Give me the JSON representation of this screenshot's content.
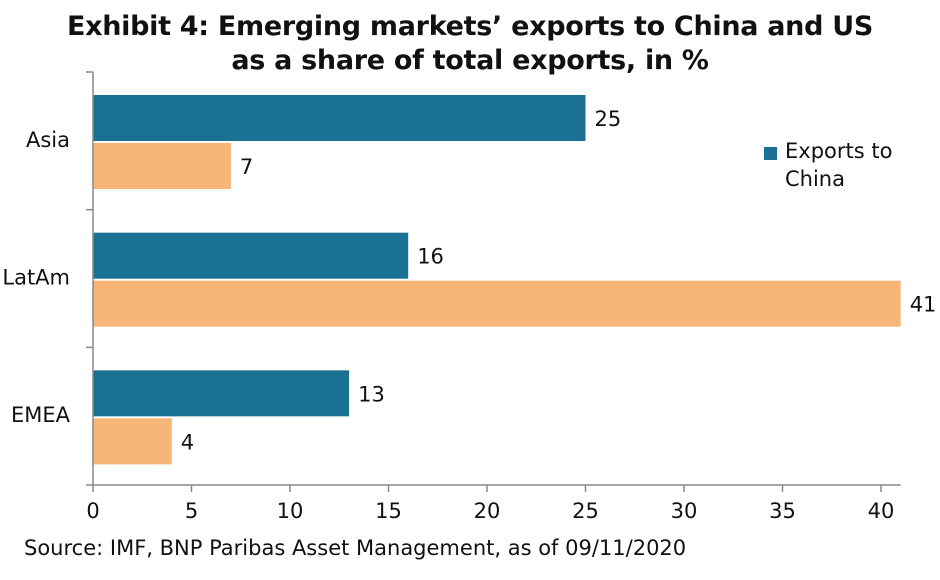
{
  "chart_data": {
    "type": "bar",
    "orientation": "horizontal",
    "title": "Exhibit 4: Emerging markets’ exports to China and US as a share of total exports, in %",
    "title_lines": [
      "Exhibit 4: Emerging markets’ exports to China and US",
      "as a share of total exports, in %"
    ],
    "categories": [
      "Asia",
      "LatAm",
      "EMEA"
    ],
    "series": [
      {
        "name": "Exports to China",
        "values": [
          25,
          16,
          13
        ],
        "color": "#1b7193"
      },
      {
        "values": [
          7,
          41,
          4
        ],
        "color": "#f7b678"
      }
    ],
    "value_labels": [
      [
        "25",
        "16",
        "13"
      ],
      [
        "7",
        "41",
        "4"
      ]
    ],
    "xlim": [
      0,
      41
    ],
    "xticks": [
      0,
      5,
      10,
      15,
      20,
      25,
      30,
      35,
      40
    ],
    "xtick_labels": [
      "0",
      "5",
      "10",
      "15",
      "20",
      "25",
      "30",
      "35",
      "40"
    ],
    "grid": false,
    "legend": {
      "position": "right",
      "entries": [
        "Exports to China"
      ]
    }
  },
  "source": "Source: IMF, BNP Paribas Asset Management, as of 09/11/2020",
  "colors": {
    "axis": "#888888",
    "text": "#111111"
  }
}
